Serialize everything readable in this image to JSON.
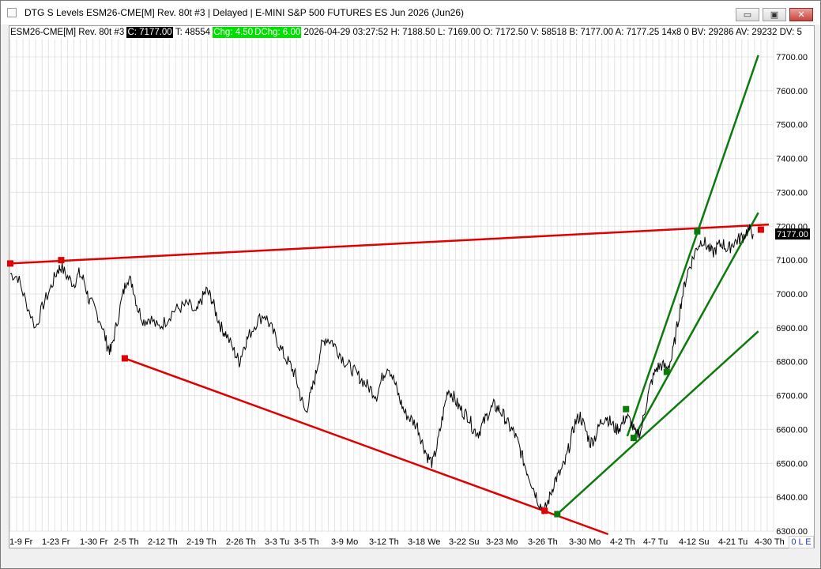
{
  "window": {
    "title": "DTG S Levels ESM26-CME[M]  Rev. 80t #3 | Delayed | E-MINI S&P 500 FUTURES ES Jun 2026 (Jun26)",
    "buttons": {
      "minimize": "▭",
      "restore": "▣",
      "close": "✕"
    }
  },
  "status": {
    "symbol": "ESM26-CME[M]  Rev. 80t #3",
    "close": "C: 7177.00",
    "ticks": "T: 48554",
    "chg": "Chg: 4.50",
    "dchg": "DChg: 6.00",
    "rest": "2026-04-29 03:27:52 H: 7188.50 L: 7169.00 O: 7172.50 V: 58518 B: 7177.00 A: 7177.25 14x8 0 BV: 29286 AV: 29232 DV: 5"
  },
  "price_tag": "7177.00",
  "ole": "0 L E",
  "colors": {
    "price": "#000000",
    "resistance": "#e00000",
    "support": "#0c7a0c",
    "marker_red": "#e00000",
    "marker_green": "#0a7a0a"
  },
  "chart_data": {
    "type": "line",
    "y_ticks": [
      "7700.00",
      "7600.00",
      "7500.00",
      "7400.00",
      "7300.00",
      "7200.00",
      "7100.00",
      "7000.00",
      "6900.00",
      "6800.00",
      "6700.00",
      "6600.00",
      "6500.00",
      "6400.00",
      "6300.00"
    ],
    "y_tick_values": [
      7700,
      7600,
      7500,
      7400,
      7300,
      7200,
      7100,
      7000,
      6900,
      6800,
      6700,
      6600,
      6500,
      6400,
      6300
    ],
    "ylim": [
      6300,
      7750
    ],
    "x_ticks": [
      "1-9 Fr",
      "1-23 Fr",
      "1-30 Fr",
      "2-5 Th",
      "2-12 Th",
      "2-19 Th",
      "2-26 Th",
      "3-3 Tu",
      "3-5 Th",
      "3-9 Mo",
      "3-12 Th",
      "3-18 We",
      "3-22 Su",
      "3-23 Mo",
      "3-26 Th",
      "3-30 Mo",
      "4-2 Th",
      "4-7 Tu",
      "4-12 Su",
      "4-21 Tu",
      "4-30 Th"
    ],
    "price_path": [
      [
        0,
        7060
      ],
      [
        0.6,
        7050
      ],
      [
        1.2,
        6980
      ],
      [
        2.0,
        6900
      ],
      [
        2.6,
        6970
      ],
      [
        3.2,
        7020
      ],
      [
        3.7,
        7070
      ],
      [
        4.0,
        7080
      ],
      [
        4.5,
        7050
      ],
      [
        5.0,
        7030
      ],
      [
        5.4,
        7060
      ],
      [
        5.8,
        7040
      ],
      [
        6.2,
        6980
      ],
      [
        6.6,
        6960
      ],
      [
        7.2,
        6910
      ],
      [
        7.6,
        6850
      ],
      [
        7.9,
        6830
      ],
      [
        8.3,
        6900
      ],
      [
        8.8,
        6990
      ],
      [
        9.2,
        7050
      ],
      [
        9.6,
        7030
      ],
      [
        10.0,
        6960
      ],
      [
        10.5,
        6920
      ],
      [
        11.0,
        6930
      ],
      [
        11.6,
        6900
      ],
      [
        12.2,
        6920
      ],
      [
        12.8,
        6950
      ],
      [
        13.4,
        6960
      ],
      [
        14.0,
        6970
      ],
      [
        14.6,
        6940
      ],
      [
        15.0,
        6980
      ],
      [
        15.4,
        7010
      ],
      [
        15.8,
        6990
      ],
      [
        16.2,
        6940
      ],
      [
        16.6,
        6900
      ],
      [
        17.0,
        6880
      ],
      [
        17.6,
        6830
      ],
      [
        18.0,
        6800
      ],
      [
        18.4,
        6850
      ],
      [
        18.8,
        6880
      ],
      [
        19.4,
        6920
      ],
      [
        20.0,
        6940
      ],
      [
        20.5,
        6900
      ],
      [
        21.0,
        6860
      ],
      [
        21.5,
        6820
      ],
      [
        22.0,
        6790
      ],
      [
        22.4,
        6760
      ],
      [
        22.8,
        6700
      ],
      [
        23.2,
        6650
      ],
      [
        23.6,
        6700
      ],
      [
        24.0,
        6760
      ],
      [
        24.4,
        6840
      ],
      [
        24.8,
        6870
      ],
      [
        25.3,
        6860
      ],
      [
        25.8,
        6830
      ],
      [
        26.3,
        6800
      ],
      [
        26.8,
        6780
      ],
      [
        27.3,
        6760
      ],
      [
        27.8,
        6740
      ],
      [
        28.3,
        6720
      ],
      [
        28.8,
        6700
      ],
      [
        29.3,
        6760
      ],
      [
        29.7,
        6790
      ],
      [
        30.2,
        6740
      ],
      [
        30.6,
        6690
      ],
      [
        31.0,
        6650
      ],
      [
        31.5,
        6630
      ],
      [
        32.0,
        6610
      ],
      [
        32.4,
        6560
      ],
      [
        32.8,
        6520
      ],
      [
        33.2,
        6500
      ],
      [
        33.6,
        6560
      ],
      [
        34.0,
        6640
      ],
      [
        34.4,
        6720
      ],
      [
        34.8,
        6700
      ],
      [
        35.2,
        6670
      ],
      [
        35.6,
        6650
      ],
      [
        36.0,
        6640
      ],
      [
        36.4,
        6600
      ],
      [
        36.8,
        6590
      ],
      [
        37.2,
        6620
      ],
      [
        37.6,
        6650
      ],
      [
        38.0,
        6670
      ],
      [
        38.4,
        6660
      ],
      [
        38.8,
        6640
      ],
      [
        39.2,
        6610
      ],
      [
        39.6,
        6590
      ],
      [
        40.0,
        6550
      ],
      [
        40.4,
        6500
      ],
      [
        40.8,
        6460
      ],
      [
        41.2,
        6420
      ],
      [
        41.6,
        6380
      ],
      [
        42.0,
        6360
      ],
      [
        42.4,
        6400
      ],
      [
        42.8,
        6450
      ],
      [
        43.2,
        6470
      ],
      [
        43.6,
        6500
      ],
      [
        44.0,
        6560
      ],
      [
        44.4,
        6620
      ],
      [
        44.8,
        6640
      ],
      [
        45.2,
        6600
      ],
      [
        45.6,
        6560
      ],
      [
        46.0,
        6580
      ],
      [
        46.4,
        6620
      ],
      [
        46.8,
        6640
      ],
      [
        47.2,
        6620
      ],
      [
        47.6,
        6600
      ],
      [
        48.0,
        6610
      ],
      [
        48.4,
        6640
      ],
      [
        48.8,
        6620
      ],
      [
        49.2,
        6580
      ],
      [
        49.6,
        6600
      ],
      [
        50.0,
        6680
      ],
      [
        50.4,
        6740
      ],
      [
        50.8,
        6780
      ],
      [
        51.2,
        6790
      ],
      [
        51.6,
        6780
      ],
      [
        52.0,
        6810
      ],
      [
        52.4,
        6900
      ],
      [
        52.8,
        6990
      ],
      [
        53.2,
        7060
      ],
      [
        53.6,
        7100
      ],
      [
        54.0,
        7140
      ],
      [
        54.4,
        7160
      ],
      [
        54.8,
        7140
      ],
      [
        55.2,
        7120
      ],
      [
        55.6,
        7140
      ],
      [
        56.0,
        7150
      ],
      [
        56.4,
        7130
      ],
      [
        56.8,
        7150
      ],
      [
        57.2,
        7160
      ],
      [
        57.6,
        7170
      ],
      [
        58.0,
        7190
      ],
      [
        58.4,
        7177
      ]
    ],
    "resistance_line": {
      "from": [
        0,
        7090
      ],
      "to": [
        60,
        7205
      ]
    },
    "resistance_markers": [
      [
        0,
        7090
      ],
      [
        4.0,
        7100
      ],
      [
        59.0,
        7190
      ]
    ],
    "support_line": {
      "from": [
        9.0,
        6810
      ],
      "to": [
        47,
        6300
      ]
    },
    "support_markers": [
      [
        9.0,
        6810
      ],
      [
        42.0,
        6360
      ]
    ],
    "green_lines": [
      {
        "from": [
          43.0,
          6350
        ],
        "to": [
          58.8,
          6890
        ]
      },
      {
        "from": [
          49.0,
          6575
        ],
        "to": [
          58.8,
          7240
        ]
      },
      {
        "from": [
          48.5,
          6580
        ],
        "to": [
          58.8,
          7705
        ]
      }
    ],
    "green_markers": [
      [
        43.0,
        6350
      ],
      [
        49.0,
        6575
      ],
      [
        48.4,
        6660
      ],
      [
        51.6,
        6770
      ],
      [
        54.0,
        7185
      ]
    ]
  }
}
